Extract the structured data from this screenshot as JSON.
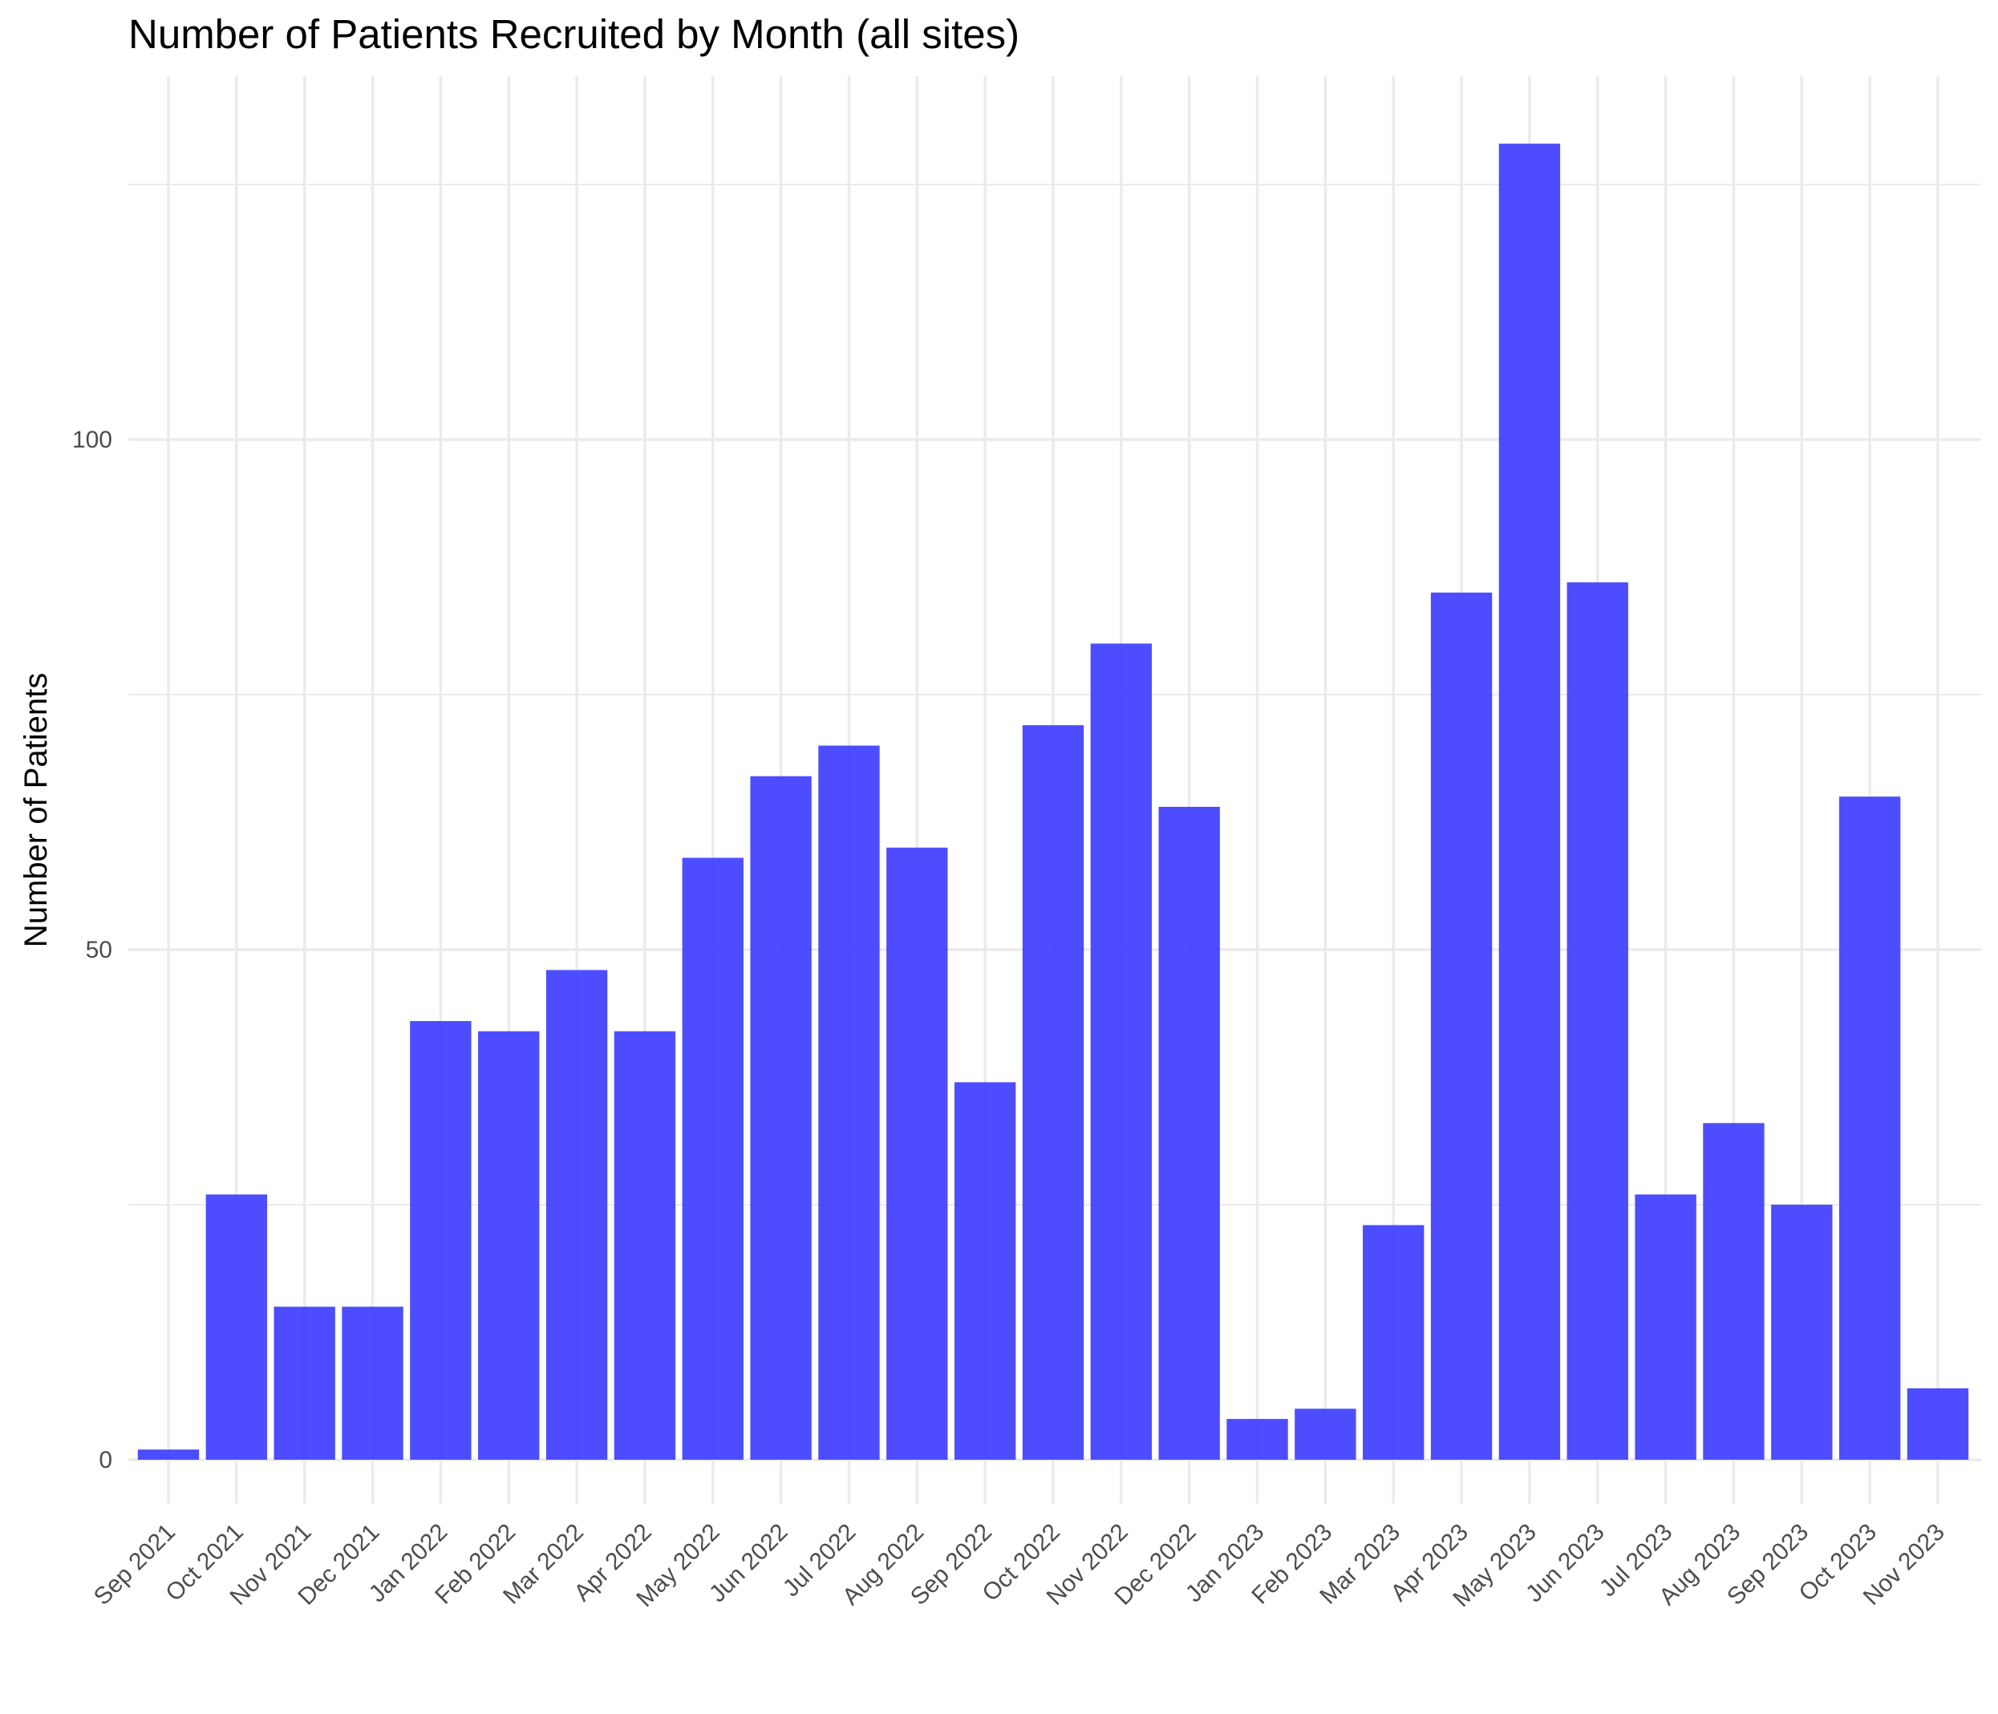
{
  "chart_data": {
    "type": "bar",
    "title": "Number of Patients Recruited by Month (all sites)",
    "xlabel": "",
    "ylabel": "Number of Patients",
    "ylim": [
      0,
      129
    ],
    "yticks": [
      0,
      50,
      100
    ],
    "grid": true,
    "legend": "none",
    "bar_color": "#3333ff",
    "bar_opacity": 0.87,
    "grid_color": "#ebebeb",
    "categories": [
      "Sep 2021",
      "Oct 2021",
      "Nov 2021",
      "Dec 2021",
      "Jan 2022",
      "Feb 2022",
      "Mar 2022",
      "Apr 2022",
      "May 2022",
      "Jun 2022",
      "Jul 2022",
      "Aug 2022",
      "Sep 2022",
      "Oct 2022",
      "Nov 2022",
      "Dec 2022",
      "Jan 2023",
      "Feb 2023",
      "Mar 2023",
      "Apr 2023",
      "May 2023",
      "Jun 2023",
      "Jul 2023",
      "Aug 2023",
      "Sep 2023",
      "Oct 2023",
      "Nov 2023"
    ],
    "values": [
      1,
      26,
      15,
      15,
      43,
      42,
      48,
      42,
      59,
      67,
      70,
      60,
      37,
      72,
      80,
      64,
      4,
      5,
      23,
      85,
      129,
      86,
      26,
      33,
      25,
      65,
      7
    ]
  }
}
